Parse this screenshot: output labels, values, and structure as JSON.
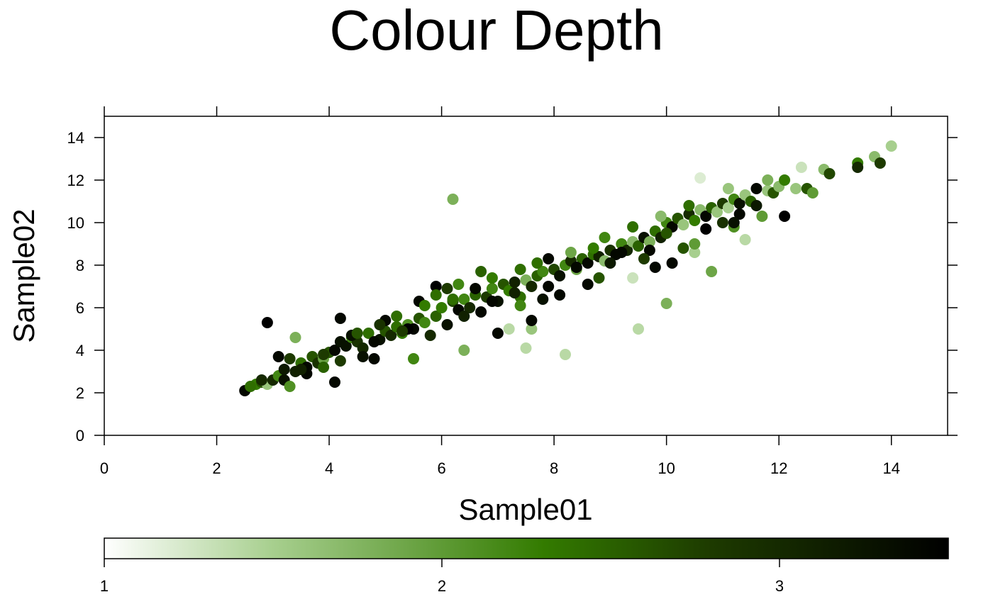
{
  "chart_data": {
    "type": "scatter",
    "title": "Colour Depth",
    "xlabel": "Sample01",
    "ylabel": "Sample02",
    "xlim": [
      0,
      15
    ],
    "ylim": [
      0,
      15
    ],
    "x_ticks": [
      0,
      2,
      4,
      6,
      8,
      10,
      12,
      14
    ],
    "y_ticks": [
      0,
      2,
      4,
      6,
      8,
      10,
      12,
      14
    ],
    "grid": false,
    "colorbar": {
      "position": "bottom",
      "range": [
        1,
        3.5
      ],
      "ticks": [
        1,
        2,
        3
      ],
      "colors": [
        "#ffffff",
        "#a7cf8e",
        "#337b00",
        "#1d3a00",
        "#000000"
      ]
    },
    "points": [
      [
        2.5,
        2.1,
        3.4
      ],
      [
        2.7,
        2.4,
        2.3
      ],
      [
        2.8,
        2.5,
        2.6
      ],
      [
        2.9,
        2.4,
        1.6
      ],
      [
        3.0,
        2.6,
        3.0
      ],
      [
        3.1,
        2.8,
        2.2
      ],
      [
        3.2,
        2.6,
        3.3
      ],
      [
        3.1,
        3.7,
        3.4
      ],
      [
        3.3,
        2.3,
        2.1
      ],
      [
        3.3,
        3.6,
        2.8
      ],
      [
        3.4,
        3.0,
        3.1
      ],
      [
        3.5,
        3.4,
        2.4
      ],
      [
        3.6,
        3.2,
        3.4
      ],
      [
        3.7,
        3.7,
        2.6
      ],
      [
        3.8,
        3.4,
        2.9
      ],
      [
        3.9,
        3.6,
        1.9
      ],
      [
        4.0,
        3.9,
        2.6
      ],
      [
        4.1,
        4.0,
        3.4
      ],
      [
        4.2,
        3.5,
        2.8
      ],
      [
        4.1,
        2.5,
        3.4
      ],
      [
        4.3,
        4.2,
        3.3
      ],
      [
        4.4,
        4.6,
        2.2
      ],
      [
        4.5,
        4.4,
        2.9
      ],
      [
        4.6,
        4.1,
        3.0
      ],
      [
        4.7,
        4.8,
        2.4
      ],
      [
        4.8,
        3.6,
        3.4
      ],
      [
        4.9,
        4.5,
        3.3
      ],
      [
        5.0,
        4.9,
        2.6
      ],
      [
        5.1,
        4.7,
        3.0
      ],
      [
        5.2,
        5.1,
        2.4
      ],
      [
        5.3,
        4.8,
        2.3
      ],
      [
        5.4,
        5.2,
        2.1
      ],
      [
        5.5,
        5.0,
        3.4
      ],
      [
        5.6,
        5.5,
        2.6
      ],
      [
        5.7,
        5.3,
        2.2
      ],
      [
        5.8,
        4.7,
        3.0
      ],
      [
        5.9,
        5.6,
        2.5
      ],
      [
        6.0,
        6.0,
        2.3
      ],
      [
        6.1,
        5.2,
        3.3
      ],
      [
        6.2,
        6.3,
        2.7
      ],
      [
        6.3,
        5.9,
        3.4
      ],
      [
        6.4,
        6.4,
        2.2
      ],
      [
        6.5,
        6.0,
        3.0
      ],
      [
        6.6,
        6.6,
        2.5
      ],
      [
        6.7,
        5.8,
        3.4
      ],
      [
        6.8,
        6.5,
        2.8
      ],
      [
        6.9,
        6.9,
        2.2
      ],
      [
        7.0,
        6.3,
        3.3
      ],
      [
        7.1,
        7.1,
        2.6
      ],
      [
        7.2,
        6.8,
        2.3
      ],
      [
        7.3,
        7.2,
        3.1
      ],
      [
        7.4,
        6.5,
        2.4
      ],
      [
        7.5,
        7.3,
        1.8
      ],
      [
        7.6,
        7.0,
        3.0
      ],
      [
        7.7,
        7.5,
        2.5
      ],
      [
        7.8,
        7.7,
        2.2
      ],
      [
        7.9,
        7.0,
        3.4
      ],
      [
        8.0,
        7.8,
        2.7
      ],
      [
        8.1,
        7.5,
        3.3
      ],
      [
        8.2,
        8.0,
        2.2
      ],
      [
        8.3,
        8.2,
        3.0
      ],
      [
        8.4,
        7.8,
        1.9
      ],
      [
        8.5,
        8.3,
        2.5
      ],
      [
        8.6,
        8.1,
        3.4
      ],
      [
        8.7,
        8.5,
        2.4
      ],
      [
        8.8,
        8.4,
        3.1
      ],
      [
        8.9,
        8.2,
        1.7
      ],
      [
        9.0,
        8.7,
        2.9
      ],
      [
        9.1,
        8.5,
        3.4
      ],
      [
        9.2,
        9.0,
        2.2
      ],
      [
        9.3,
        8.7,
        3.0
      ],
      [
        9.4,
        9.1,
        1.7
      ],
      [
        9.5,
        8.9,
        2.5
      ],
      [
        9.6,
        9.3,
        3.3
      ],
      [
        9.7,
        9.1,
        1.8
      ],
      [
        9.8,
        9.6,
        2.4
      ],
      [
        9.9,
        9.3,
        3.1
      ],
      [
        10.0,
        10.0,
        2.2
      ],
      [
        10.1,
        9.8,
        3.4
      ],
      [
        10.2,
        10.2,
        2.6
      ],
      [
        10.3,
        9.9,
        1.6
      ],
      [
        10.4,
        10.4,
        3.0
      ],
      [
        10.5,
        10.1,
        2.3
      ],
      [
        10.6,
        10.6,
        1.7
      ],
      [
        10.7,
        10.3,
        3.4
      ],
      [
        10.8,
        10.7,
        2.5
      ],
      [
        10.9,
        10.5,
        1.6
      ],
      [
        11.0,
        10.9,
        2.8
      ],
      [
        11.1,
        10.7,
        1.5
      ],
      [
        11.2,
        11.1,
        2.2
      ],
      [
        11.3,
        10.9,
        3.3
      ],
      [
        11.4,
        11.3,
        1.6
      ],
      [
        11.5,
        11.0,
        2.5
      ],
      [
        11.6,
        11.6,
        3.4
      ],
      [
        11.8,
        11.5,
        1.6
      ],
      [
        11.9,
        11.4,
        2.6
      ],
      [
        12.0,
        11.7,
        1.7
      ],
      [
        12.1,
        12.0,
        2.3
      ],
      [
        12.3,
        11.6,
        1.6
      ],
      [
        12.4,
        12.6,
        1.3
      ],
      [
        12.5,
        11.6,
        2.6
      ],
      [
        12.6,
        11.4,
        2.0
      ],
      [
        12.8,
        12.5,
        1.7
      ],
      [
        12.9,
        12.3,
        2.7
      ],
      [
        13.4,
        12.8,
        2.3
      ],
      [
        13.4,
        12.6,
        3.0
      ],
      [
        13.7,
        13.1,
        1.7
      ],
      [
        13.8,
        12.8,
        2.8
      ],
      [
        14.0,
        13.6,
        1.5
      ],
      [
        12.1,
        10.3,
        3.5
      ],
      [
        11.3,
        10.4,
        3.4
      ],
      [
        11.2,
        9.8,
        2.1
      ],
      [
        11.7,
        10.3,
        2.0
      ],
      [
        11.4,
        9.2,
        1.4
      ],
      [
        10.8,
        7.7,
        1.9
      ],
      [
        10.5,
        8.6,
        1.5
      ],
      [
        10.5,
        9.0,
        2.0
      ],
      [
        10.6,
        12.1,
        1.2
      ],
      [
        10.0,
        6.2,
        1.8
      ],
      [
        9.5,
        5.0,
        1.4
      ],
      [
        9.4,
        7.4,
        1.3
      ],
      [
        8.2,
        3.8,
        1.4
      ],
      [
        7.5,
        4.1,
        1.4
      ],
      [
        7.6,
        5.0,
        1.6
      ],
      [
        7.6,
        5.4,
        3.4
      ],
      [
        7.2,
        5.0,
        1.4
      ],
      [
        6.4,
        4.0,
        1.8
      ],
      [
        6.2,
        11.1,
        1.8
      ],
      [
        5.8,
        8.2,
        1.0
      ],
      [
        5.5,
        3.6,
        2.2
      ],
      [
        4.2,
        5.5,
        3.4
      ],
      [
        3.4,
        4.6,
        1.8
      ],
      [
        2.9,
        5.3,
        3.5
      ],
      [
        6.7,
        7.7,
        2.5
      ],
      [
        5.9,
        7.0,
        3.5
      ],
      [
        7.0,
        4.8,
        3.4
      ],
      [
        5.9,
        6.6,
        2.4
      ],
      [
        4.6,
        3.7,
        3.3
      ],
      [
        3.9,
        3.2,
        2.5
      ],
      [
        6.1,
        6.9,
        2.8
      ],
      [
        8.6,
        7.1,
        3.4
      ],
      [
        8.8,
        7.4,
        2.6
      ],
      [
        9.8,
        7.9,
        3.4
      ],
      [
        10.1,
        8.1,
        3.4
      ],
      [
        10.3,
        8.8,
        2.6
      ],
      [
        8.1,
        6.6,
        3.4
      ],
      [
        7.8,
        6.4,
        3.3
      ],
      [
        7.4,
        6.1,
        2.2
      ],
      [
        6.9,
        6.3,
        3.4
      ],
      [
        6.6,
        6.9,
        3.4
      ],
      [
        5.4,
        5.0,
        3.5
      ],
      [
        5.0,
        5.4,
        3.4
      ],
      [
        4.4,
        4.7,
        3.3
      ],
      [
        3.6,
        2.9,
        3.4
      ],
      [
        3.9,
        3.8,
        2.8
      ],
      [
        4.8,
        4.4,
        3.4
      ],
      [
        5.3,
        4.9,
        2.8
      ],
      [
        6.4,
        5.6,
        3.1
      ],
      [
        7.3,
        6.7,
        3.1
      ],
      [
        8.4,
        7.9,
        3.4
      ],
      [
        9.0,
        8.1,
        3.2
      ],
      [
        9.2,
        8.6,
        3.4
      ],
      [
        9.7,
        8.7,
        3.4
      ],
      [
        10.0,
        9.5,
        2.6
      ],
      [
        10.7,
        9.7,
        3.5
      ],
      [
        11.6,
        10.8,
        3.2
      ],
      [
        11.2,
        10.0,
        3.3
      ],
      [
        11.0,
        10.0,
        2.9
      ],
      [
        9.6,
        8.3,
        2.8
      ],
      [
        8.7,
        8.8,
        2.3
      ],
      [
        7.9,
        8.3,
        3.4
      ],
      [
        7.4,
        7.8,
        2.4
      ],
      [
        6.2,
        6.4,
        2.4
      ],
      [
        5.6,
        6.3,
        3.4
      ],
      [
        4.9,
        5.2,
        2.9
      ],
      [
        4.2,
        4.4,
        3.3
      ],
      [
        3.5,
        3.1,
        3.1
      ],
      [
        3.2,
        3.1,
        3.2
      ],
      [
        2.8,
        2.6,
        3.0
      ],
      [
        2.6,
        2.3,
        2.4
      ],
      [
        4.5,
        4.8,
        2.6
      ],
      [
        5.2,
        5.6,
        2.4
      ],
      [
        5.7,
        6.1,
        2.3
      ],
      [
        6.3,
        7.1,
        2.2
      ],
      [
        6.9,
        7.4,
        2.3
      ],
      [
        7.7,
        8.1,
        2.4
      ],
      [
        8.3,
        8.6,
        1.9
      ],
      [
        8.9,
        9.3,
        2.2
      ],
      [
        9.4,
        9.8,
        2.4
      ],
      [
        9.9,
        10.3,
        1.7
      ],
      [
        10.4,
        10.8,
        2.4
      ],
      [
        11.1,
        11.6,
        1.6
      ],
      [
        11.8,
        12.0,
        1.8
      ]
    ]
  }
}
